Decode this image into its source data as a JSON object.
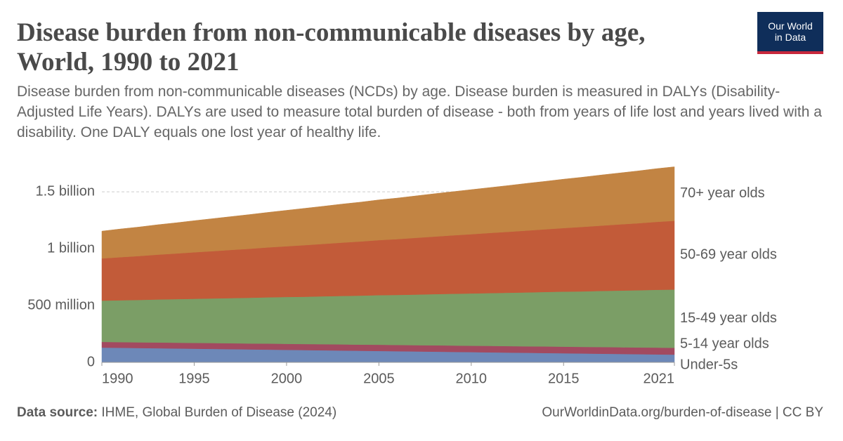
{
  "chart_data": {
    "type": "stacked-area",
    "title": "Disease burden from non-communicable diseases by age, World, 1990 to 2021",
    "subtitle": "Disease burden from non-communicable diseases (NCDs) by age. Disease burden is measured in DALYs (Disability-Adjusted Life Years). DALYs are used to measure total burden of disease - both from years of life lost and years lived with a disability. One DALY equals one lost year of healthy life.",
    "logo": [
      "Our World",
      "in Data"
    ],
    "source_label": "Data source:",
    "source": "IHME, Global Burden of Disease (2024)",
    "url": "OurWorldinData.org/burden-of-disease | CC BY",
    "x": [
      1990,
      1991,
      1992,
      1993,
      1994,
      1995,
      1996,
      1997,
      1998,
      1999,
      2000,
      2001,
      2002,
      2003,
      2004,
      2005,
      2006,
      2007,
      2008,
      2009,
      2010,
      2011,
      2012,
      2013,
      2014,
      2015,
      2016,
      2017,
      2018,
      2019,
      2020,
      2021
    ],
    "xlim": [
      1990,
      2021
    ],
    "xticks": [
      1990,
      1995,
      2000,
      2005,
      2010,
      2015,
      2021
    ],
    "ylim": [
      0,
      1760000000.0
    ],
    "yticks": [
      0,
      {
        "value": 500000000.0,
        "label": "500 million"
      },
      {
        "value": 1000000000.0,
        "label": "1 billion"
      },
      {
        "value": 1500000000.0,
        "label": "1.5 billion"
      }
    ],
    "grid": true,
    "series": [
      {
        "name": "Under-5s",
        "color": "#6d88b8",
        "label_color": "#4c6a9c",
        "values": [
          130000000.0,
          128000000.0,
          126000000.0,
          124000000.0,
          122000000.0,
          120000000.0,
          118000000.0,
          116000000.0,
          114000000.0,
          112000000.0,
          110000000.0,
          108000000.0,
          106000000.0,
          104000000.0,
          102000000.0,
          100000000.0,
          98000000.0,
          96000000.0,
          94000000.0,
          92000000.0,
          90000000.0,
          88000000.0,
          86000000.0,
          84000000.0,
          82000000.0,
          80000000.0,
          78000000.0,
          76000000.0,
          74000000.0,
          72000000.0,
          70000000.0,
          68000000.0
        ]
      },
      {
        "name": "5-14 year olds",
        "color": "#a24a60",
        "label_color": "#8c2e47",
        "values": [
          50000000.0,
          50000000.0,
          50000000.0,
          51000000.0,
          51000000.0,
          51000000.0,
          52000000.0,
          52000000.0,
          52000000.0,
          53000000.0,
          53000000.0,
          53000000.0,
          54000000.0,
          54000000.0,
          54000000.0,
          55000000.0,
          55000000.0,
          55000000.0,
          56000000.0,
          56000000.0,
          56000000.0,
          57000000.0,
          57000000.0,
          57000000.0,
          58000000.0,
          58000000.0,
          58000000.0,
          59000000.0,
          59000000.0,
          59000000.0,
          60000000.0,
          60000000.0
        ]
      },
      {
        "name": "15-49 year olds",
        "color": "#7b9e66",
        "label_color": "#578a3c",
        "values": [
          363000000.0,
          368000000.0,
          373000000.0,
          378000000.0,
          383000000.0,
          388000000.0,
          392000000.0,
          397000000.0,
          402000000.0,
          407000000.0,
          412000000.0,
          416000000.0,
          421000000.0,
          426000000.0,
          431000000.0,
          436000000.0,
          440000000.0,
          445000000.0,
          450000000.0,
          455000000.0,
          460000000.0,
          464000000.0,
          469000000.0,
          474000000.0,
          479000000.0,
          484000000.0,
          488000000.0,
          493000000.0,
          498000000.0,
          503000000.0,
          508000000.0,
          512000000.0
        ]
      },
      {
        "name": "50-69 year olds",
        "color": "#c25b39",
        "label_color": "#b13507",
        "values": [
          371000000.0,
          379000000.0,
          386000000.0,
          394000000.0,
          401000000.0,
          409000000.0,
          416000000.0,
          424000000.0,
          431000000.0,
          439000000.0,
          446000000.0,
          454000000.0,
          461000000.0,
          469000000.0,
          476000000.0,
          484000000.0,
          491000000.0,
          499000000.0,
          506000000.0,
          514000000.0,
          521000000.0,
          529000000.0,
          536000000.0,
          544000000.0,
          551000000.0,
          559000000.0,
          567000000.0,
          574000000.0,
          582000000.0,
          589000000.0,
          597000000.0,
          605000000.0
        ]
      },
      {
        "name": "70+ year olds",
        "color": "#c28443",
        "label_color": "#b16214",
        "values": [
          240000000.0,
          248000000.0,
          255000000.0,
          263000000.0,
          270000000.0,
          278000000.0,
          286000000.0,
          293000000.0,
          301000000.0,
          308000000.0,
          316000000.0,
          324000000.0,
          331000000.0,
          339000000.0,
          346000000.0,
          354000000.0,
          361000000.0,
          369000000.0,
          377000000.0,
          384000000.0,
          392000000.0,
          399000000.0,
          407000000.0,
          415000000.0,
          422000000.0,
          430000000.0,
          437000000.0,
          445000000.0,
          452000000.0,
          460000000.0,
          468000000.0,
          475000000.0
        ]
      }
    ]
  }
}
